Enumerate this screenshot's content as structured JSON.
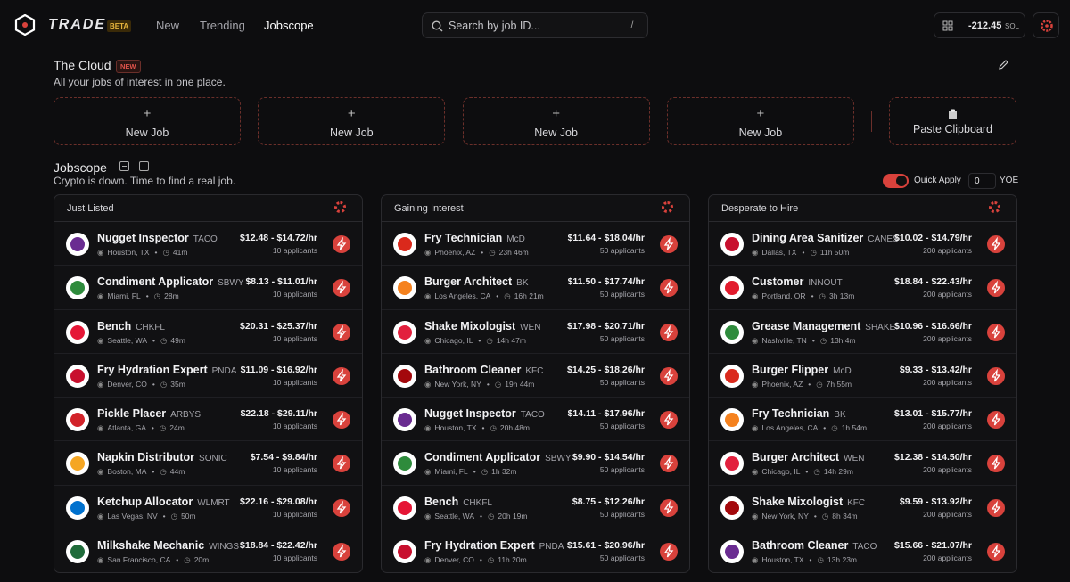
{
  "nav": {
    "brand": "TRADE",
    "badge": "BETA",
    "links": [
      "New",
      "Trending",
      "Jobscope"
    ],
    "search_placeholder": "Search by job ID...",
    "search_shortcut": "/",
    "balance": "-212.45",
    "balance_unit": "SOL"
  },
  "cloud": {
    "title": "The Cloud",
    "badge": "NEW",
    "subtitle": "All your jobs of interest in one place.",
    "slots": [
      "New Job",
      "New Job",
      "New Job",
      "New Job"
    ],
    "paste": "Paste Clipboard"
  },
  "jobscope": {
    "title": "Jobscope",
    "subtitle": "Crypto is down. Time to find a real job.",
    "quick_apply": "Quick Apply",
    "yoe_value": "0",
    "yoe_label": "YOE"
  },
  "columns": [
    {
      "title": "Just Listed",
      "jobs": [
        {
          "title": "Nugget Inspector",
          "company": "TACO",
          "location": "Houston, TX",
          "time": "41m",
          "pay": "$12.48 - $14.72/hr",
          "applicants": "10 applicants"
        },
        {
          "title": "Condiment Applicator",
          "company": "SBWY",
          "location": "Miami, FL",
          "time": "28m",
          "pay": "$8.13 - $11.01/hr",
          "applicants": "10 applicants"
        },
        {
          "title": "Bench",
          "company": "CHKFL",
          "location": "Seattle, WA",
          "time": "49m",
          "pay": "$20.31 - $25.37/hr",
          "applicants": "10 applicants"
        },
        {
          "title": "Fry Hydration Expert",
          "company": "PNDA",
          "location": "Denver, CO",
          "time": "35m",
          "pay": "$11.09 - $16.92/hr",
          "applicants": "10 applicants"
        },
        {
          "title": "Pickle Placer",
          "company": "ARBYS",
          "location": "Atlanta, GA",
          "time": "24m",
          "pay": "$22.18 - $29.11/hr",
          "applicants": "10 applicants"
        },
        {
          "title": "Napkin Distributor",
          "company": "SONIC",
          "location": "Boston, MA",
          "time": "44m",
          "pay": "$7.54 - $9.84/hr",
          "applicants": "10 applicants"
        },
        {
          "title": "Ketchup Allocator",
          "company": "WLMRT",
          "location": "Las Vegas, NV",
          "time": "50m",
          "pay": "$22.16 - $29.08/hr",
          "applicants": "10 applicants"
        },
        {
          "title": "Milkshake Mechanic",
          "company": "WINGS",
          "location": "San Francisco, CA",
          "time": "20m",
          "pay": "$18.84 - $22.42/hr",
          "applicants": "10 applicants"
        }
      ]
    },
    {
      "title": "Gaining Interest",
      "jobs": [
        {
          "title": "Fry Technician",
          "company": "McD",
          "location": "Phoenix, AZ",
          "time": "23h 46m",
          "pay": "$11.64 - $18.04/hr",
          "applicants": "50 applicants"
        },
        {
          "title": "Burger Architect",
          "company": "BK",
          "location": "Los Angeles, CA",
          "time": "16h 21m",
          "pay": "$11.50 - $17.74/hr",
          "applicants": "50 applicants"
        },
        {
          "title": "Shake Mixologist",
          "company": "WEN",
          "location": "Chicago, IL",
          "time": "14h 47m",
          "pay": "$17.98 - $20.71/hr",
          "applicants": "50 applicants"
        },
        {
          "title": "Bathroom Cleaner",
          "company": "KFC",
          "location": "New York, NY",
          "time": "19h 44m",
          "pay": "$14.25 - $18.26/hr",
          "applicants": "50 applicants"
        },
        {
          "title": "Nugget Inspector",
          "company": "TACO",
          "location": "Houston, TX",
          "time": "20h 48m",
          "pay": "$14.11 - $17.96/hr",
          "applicants": "50 applicants"
        },
        {
          "title": "Condiment Applicator",
          "company": "SBWY",
          "location": "Miami, FL",
          "time": "1h 32m",
          "pay": "$9.90 - $14.54/hr",
          "applicants": "50 applicants"
        },
        {
          "title": "Bench",
          "company": "CHKFL",
          "location": "Seattle, WA",
          "time": "20h 19m",
          "pay": "$8.75 - $12.26/hr",
          "applicants": "50 applicants"
        },
        {
          "title": "Fry Hydration Expert",
          "company": "PNDA",
          "location": "Denver, CO",
          "time": "11h 20m",
          "pay": "$15.61 - $20.96/hr",
          "applicants": "50 applicants"
        }
      ]
    },
    {
      "title": "Desperate to Hire",
      "jobs": [
        {
          "title": "Dining Area Sanitizer",
          "company": "CANES",
          "location": "Dallas, TX",
          "time": "11h 50m",
          "pay": "$10.02 - $14.79/hr",
          "applicants": "200 applicants"
        },
        {
          "title": "Customer",
          "company": "INNOUT",
          "location": "Portland, OR",
          "time": "3h 13m",
          "pay": "$18.84 - $22.43/hr",
          "applicants": "200 applicants"
        },
        {
          "title": "Grease Management",
          "company": "SHAKE",
          "location": "Nashville, TN",
          "time": "13h 4m",
          "pay": "$10.96 - $16.66/hr",
          "applicants": "200 applicants"
        },
        {
          "title": "Burger Flipper",
          "company": "McD",
          "location": "Phoenix, AZ",
          "time": "7h 55m",
          "pay": "$9.33 - $13.42/hr",
          "applicants": "200 applicants"
        },
        {
          "title": "Fry Technician",
          "company": "BK",
          "location": "Los Angeles, CA",
          "time": "1h 54m",
          "pay": "$13.01 - $15.77/hr",
          "applicants": "200 applicants"
        },
        {
          "title": "Burger Architect",
          "company": "WEN",
          "location": "Chicago, IL",
          "time": "14h 29m",
          "pay": "$12.38 - $14.50/hr",
          "applicants": "200 applicants"
        },
        {
          "title": "Shake Mixologist",
          "company": "KFC",
          "location": "New York, NY",
          "time": "8h 34m",
          "pay": "$9.59 - $13.92/hr",
          "applicants": "200 applicants"
        },
        {
          "title": "Bathroom Cleaner",
          "company": "TACO",
          "location": "Houston, TX",
          "time": "13h 23m",
          "pay": "$15.66 - $21.07/hr",
          "applicants": "200 applicants"
        }
      ]
    }
  ]
}
